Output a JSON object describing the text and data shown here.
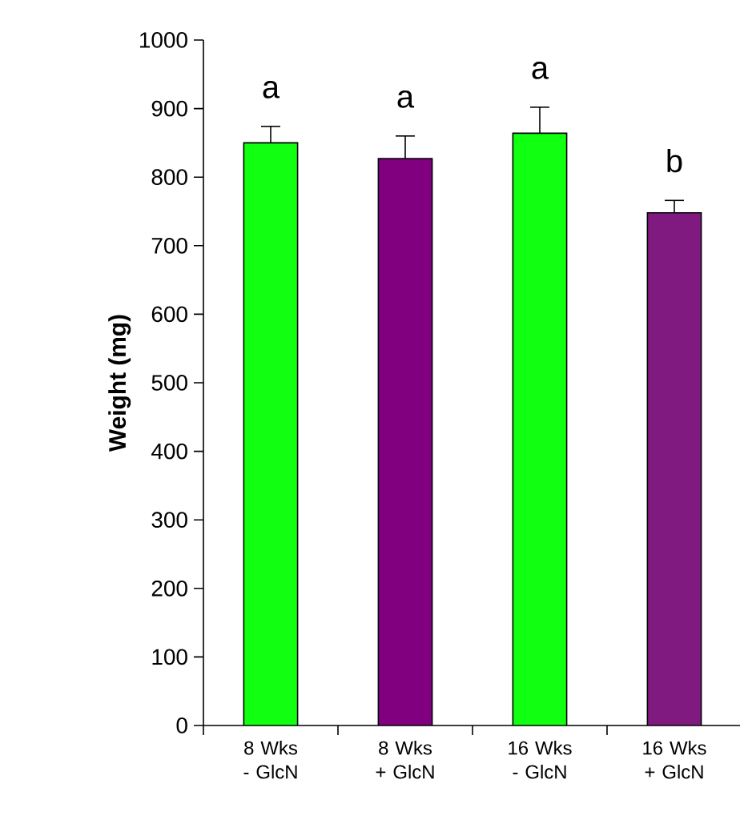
{
  "chart_data": {
    "type": "bar",
    "ylabel": "Weight (mg)",
    "categories": [
      "8 Wks - GlcN",
      "8 Wks + GlcN",
      "16 Wks - GlcN",
      "16 Wks + GlcN"
    ],
    "values": [
      850,
      827,
      864,
      748
    ],
    "errors": [
      24,
      33,
      38,
      18
    ],
    "colors": [
      "#11ff11",
      "#800080",
      "#11ff11",
      "#801a80"
    ],
    "ylim": [
      0,
      1000
    ],
    "yticks": [
      0,
      100,
      200,
      300,
      400,
      500,
      600,
      700,
      800,
      900,
      1000
    ],
    "grid": false,
    "annotations": [
      "a",
      "a",
      "a",
      "b"
    ]
  }
}
